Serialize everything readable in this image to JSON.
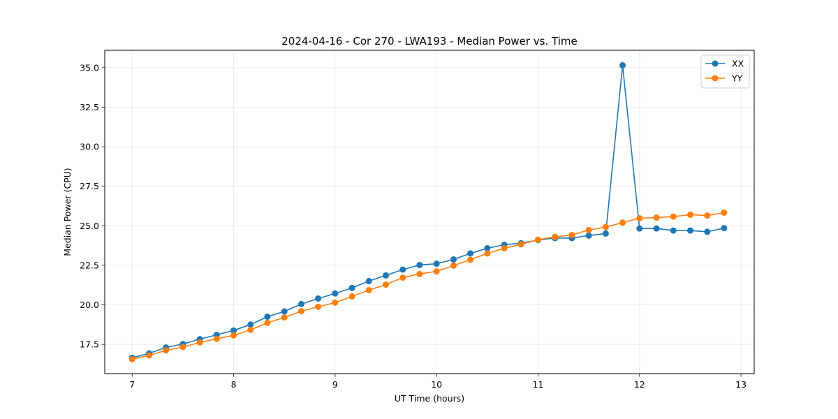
{
  "chart_data": {
    "type": "line",
    "title": "2024-04-16 - Cor 270 - LWA193 - Median Power vs. Time",
    "xlabel": "UT Time (hours)",
    "ylabel": "Median Power (CPU)",
    "xlim": [
      6.73,
      13.13
    ],
    "ylim": [
      15.65,
      36.1
    ],
    "xticks": [
      7,
      8,
      9,
      10,
      11,
      12,
      13
    ],
    "yticks": [
      17.5,
      20.0,
      22.5,
      25.0,
      27.5,
      30.0,
      32.5,
      35.0
    ],
    "ytick_labels": [
      "17.5",
      "20.0",
      "22.5",
      "25.0",
      "27.5",
      "30.0",
      "32.5",
      "35.0"
    ],
    "grid": true,
    "legend_position": "top-right",
    "x": [
      7.0,
      7.167,
      7.333,
      7.5,
      7.667,
      7.833,
      8.0,
      8.167,
      8.333,
      8.5,
      8.667,
      8.833,
      9.0,
      9.167,
      9.333,
      9.5,
      9.667,
      9.833,
      10.0,
      10.167,
      10.333,
      10.5,
      10.667,
      10.833,
      11.0,
      11.167,
      11.333,
      11.5,
      11.667,
      11.833,
      12.0,
      12.167,
      12.333,
      12.5,
      12.667,
      12.833
    ],
    "series": [
      {
        "name": "XX",
        "color": "#1f77b4",
        "values": [
          16.65,
          16.93,
          17.3,
          17.52,
          17.83,
          18.1,
          18.38,
          18.75,
          19.25,
          19.58,
          20.05,
          20.4,
          20.72,
          21.07,
          21.5,
          21.86,
          22.23,
          22.52,
          22.6,
          22.87,
          23.25,
          23.58,
          23.8,
          23.9,
          24.1,
          24.22,
          24.22,
          24.38,
          24.51,
          35.15,
          24.83,
          24.83,
          24.7,
          24.7,
          24.62,
          24.85
        ]
      },
      {
        "name": "YY",
        "color": "#ff7f0e",
        "values": [
          16.56,
          16.8,
          17.12,
          17.33,
          17.62,
          17.85,
          18.07,
          18.42,
          18.86,
          19.2,
          19.6,
          19.88,
          20.14,
          20.53,
          20.93,
          21.28,
          21.72,
          21.95,
          22.12,
          22.48,
          22.85,
          23.25,
          23.58,
          23.83,
          24.12,
          24.3,
          24.42,
          24.73,
          24.92,
          25.2,
          25.48,
          25.52,
          25.58,
          25.7,
          25.65,
          25.83
        ]
      }
    ]
  }
}
